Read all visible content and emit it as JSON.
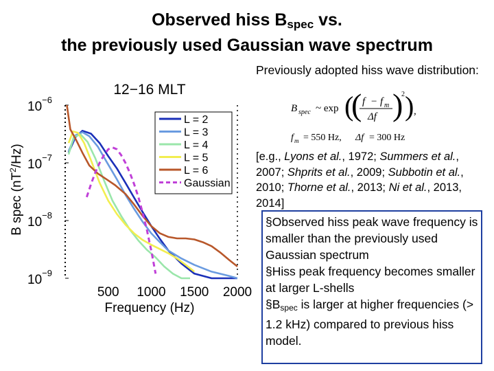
{
  "slide": {
    "title_line1_pre": "Observed hiss B",
    "title_line1_sub": "spec",
    "title_line1_post": " vs.",
    "title_line2": "the previously used Gaussian wave spectrum",
    "intro": "Previously adopted hiss wave distribution:",
    "formula": {
      "lhs": "B",
      "lhs_sub": "spec",
      "rel": "~ exp",
      "num_f": "f",
      "num_minus": "−",
      "num_fm": "f",
      "num_fm_sub": "m",
      "den": "Δf",
      "power": "2",
      "comma": ",",
      "bottom_f": "f",
      "bottom_f_sub": "m",
      "bottom_val": "= 550 Hz,",
      "bottom_df": "Δf",
      "bottom_df_val": "= 300 Hz"
    },
    "refs": {
      "open": "[e.g., ",
      "r1": "Lyons et al.",
      "r1y": ", 1972; ",
      "r2": "Summers et al.",
      "r2y": ", 2007; ",
      "r3": "Shprits et al.",
      "r3y": ", 2009; ",
      "r4": "Subbotin et al.",
      "r4y": ", 2010; ",
      "r5": "Thorne et al.",
      "r5y": ", 2013; ",
      "r6": "Ni et al.",
      "r6y": ", 2013, 2014]"
    },
    "bullets": {
      "b1": "§Observed hiss peak wave frequency is smaller than the previously used Gaussian spectrum",
      "b2": "§Hiss peak frequency becomes smaller at larger L-shells",
      "b3_pre": "§B",
      "b3_sub": "spec",
      "b3_post": " is larger at higher frequencies (> 1.2 kHz) compared to previous hiss model."
    },
    "colors": {
      "box_border": "#1e3fa0"
    }
  },
  "chart_data": {
    "type": "line",
    "title": "12−16 MLT",
    "xlabel": "Frequency (Hz)",
    "ylabel_pre": "B spec (nT",
    "ylabel_sup": "2",
    "ylabel_post": "/Hz)",
    "xlim": [
      0,
      2000
    ],
    "ylim": [
      1e-09,
      1e-06
    ],
    "yscale": "log",
    "xticks": [
      {
        "value": 500,
        "label": "500"
      },
      {
        "value": 1000,
        "label": "1000"
      },
      {
        "value": 1500,
        "label": "1500"
      },
      {
        "value": 2000,
        "label": "2000"
      }
    ],
    "yticks": [
      {
        "value": 1e-06,
        "base": "10",
        "exp": "−6"
      },
      {
        "value": 1e-07,
        "base": "10",
        "exp": "−7"
      },
      {
        "value": 1e-08,
        "base": "10",
        "exp": "−8"
      },
      {
        "value": 1e-09,
        "base": "10",
        "exp": "−9"
      }
    ],
    "legend_position": "top-right",
    "series": [
      {
        "name": "L = 2",
        "color": "#1a2fb8",
        "dash": "",
        "x": [
          40,
          120,
          200,
          300,
          400,
          500,
          600,
          700,
          800,
          900,
          1000,
          1100,
          1200,
          1350,
          1500,
          1700,
          1900,
          2000
        ],
        "y": [
          1.5e-07,
          2.8e-07,
          3.6e-07,
          3.2e-07,
          2.2e-07,
          1.3e-07,
          8e-08,
          4.5e-08,
          2.5e-08,
          1.4e-08,
          8e-09,
          4.8e-09,
          3e-09,
          1.8e-09,
          1.2e-09,
          9e-10,
          8e-10,
          8e-10
        ]
      },
      {
        "name": "L = 3",
        "color": "#6a9be0",
        "dash": "",
        "x": [
          40,
          120,
          200,
          280,
          380,
          480,
          600,
          700,
          800,
          900,
          1000,
          1100,
          1200,
          1350,
          1500,
          1700,
          1900,
          2000
        ],
        "y": [
          1.6e-07,
          3e-07,
          3.4e-07,
          2.9e-07,
          1.9e-07,
          1.05e-07,
          5.2e-08,
          2.8e-08,
          1.6e-08,
          9.5e-09,
          6e-09,
          4.2e-09,
          3e-09,
          2.2e-09,
          1.7e-09,
          1.3e-09,
          1.1e-09,
          1e-09
        ]
      },
      {
        "name": "L = 4",
        "color": "#9ae6aa",
        "dash": "",
        "x": [
          40,
          100,
          180,
          260,
          350,
          450,
          550,
          650,
          750,
          850,
          950,
          1050,
          1150,
          1250,
          1350,
          1450
        ],
        "y": [
          1.4e-07,
          2.8e-07,
          3.1e-07,
          2.3e-07,
          1.2e-07,
          5e-08,
          2.2e-08,
          1.2e-08,
          7e-09,
          4.5e-09,
          3.1e-09,
          2.3e-09,
          1.6e-09,
          1.2e-09,
          9e-10,
          8e-10
        ]
      },
      {
        "name": "L = 5",
        "color": "#f2ee50",
        "dash": "",
        "x": [
          40,
          90,
          150,
          220,
          300,
          400,
          500,
          600,
          700,
          800,
          900,
          1000,
          1100,
          1200,
          1300,
          1400,
          1500
        ],
        "y": [
          2.2e-07,
          3.5e-07,
          3.3e-07,
          2.2e-07,
          1.1e-07,
          4.5e-08,
          2.2e-08,
          1.3e-08,
          8.5e-09,
          6e-09,
          4.6e-09,
          3.8e-09,
          3.2e-09,
          2.7e-09,
          2.2e-09,
          1.7e-09,
          1.3e-09
        ]
      },
      {
        "name": "L = 6",
        "color": "#b8572a",
        "dash": "",
        "x": [
          20,
          60,
          120,
          200,
          280,
          380,
          480,
          580,
          700,
          800,
          900,
          1000,
          1100,
          1200,
          1300,
          1400,
          1500,
          1600,
          1700,
          1800,
          1900,
          2000
        ],
        "y": [
          1e-06,
          3.8e-07,
          2.6e-07,
          1.5e-07,
          9e-08,
          6.5e-08,
          5.2e-08,
          4.1e-08,
          2.9e-08,
          1.9e-08,
          1.2e-08,
          8e-09,
          6e-09,
          5.2e-09,
          4.9e-09,
          4.9e-09,
          4.7e-09,
          4.2e-09,
          3.6e-09,
          2.8e-09,
          2.1e-09,
          1.6e-09
        ]
      },
      {
        "name": "Gaussian",
        "color": "#c040d8",
        "dash": "7,5",
        "x": [
          250,
          300,
          350,
          400,
          450,
          500,
          550,
          600,
          650,
          700,
          750,
          800,
          850,
          900,
          950,
          1000,
          1050
        ],
        "y": [
          2.55e-08,
          4.3e-08,
          6.8e-08,
          1e-07,
          1.36e-07,
          1.72e-07,
          1.85e-07,
          1.72e-07,
          1.36e-07,
          1e-07,
          6.8e-08,
          4.3e-08,
          2.55e-08,
          1.36e-08,
          6.8e-09,
          3e-09,
          1.2e-09
        ]
      }
    ]
  }
}
